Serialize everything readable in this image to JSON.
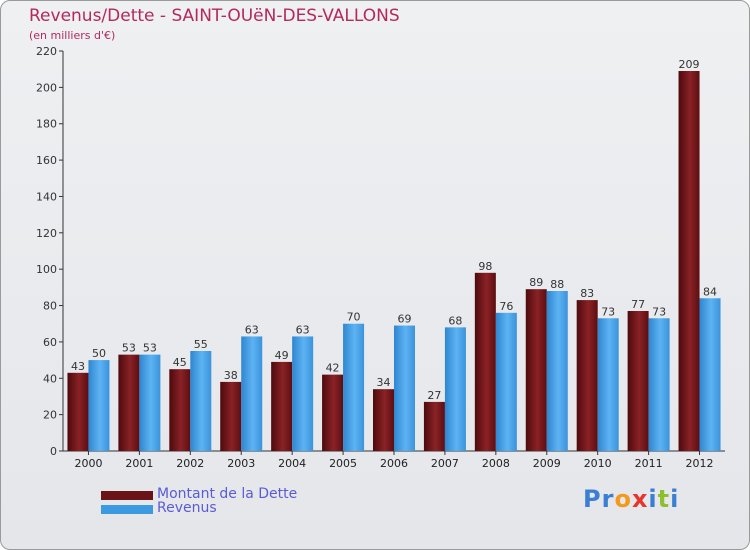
{
  "colors": {
    "debt": "#6b1418",
    "revenue": "#3c9ae0",
    "title": "#b5285d",
    "legend_text": "#5b5bd6"
  },
  "chart_data": {
    "type": "bar",
    "title": "Revenus/Dette - SAINT-OUëN-DES-VALLONS",
    "subtitle": "(en milliers d'€)",
    "categories": [
      "2000",
      "2001",
      "2002",
      "2003",
      "2004",
      "2005",
      "2006",
      "2007",
      "2008",
      "2009",
      "2010",
      "2011",
      "2012"
    ],
    "series": [
      {
        "name": "Montant de la Dette",
        "values": [
          43,
          53,
          45,
          38,
          49,
          42,
          34,
          27,
          98,
          89,
          83,
          77,
          209
        ]
      },
      {
        "name": "Revenus",
        "values": [
          50,
          53,
          55,
          63,
          63,
          70,
          69,
          68,
          76,
          88,
          73,
          73,
          84
        ]
      }
    ],
    "ylim": [
      0,
      220
    ],
    "yticks": [
      "0",
      "20",
      "40",
      "60",
      "80",
      "100",
      "120",
      "140",
      "160",
      "180",
      "200",
      "220"
    ],
    "grid": false,
    "legend_position": "bottom-left"
  },
  "legend": {
    "debt_label": "Montant de la Dette",
    "revenue_label": "Revenus"
  },
  "logo": {
    "letters": [
      "P",
      "r",
      "o",
      "x",
      "i",
      "t",
      "i"
    ],
    "letter_colors": [
      "#3b7fd4",
      "#3b7fd4",
      "#f39a1e",
      "#e8352b",
      "#3b7fd4",
      "#8dbf2f",
      "#3b7fd4"
    ]
  }
}
